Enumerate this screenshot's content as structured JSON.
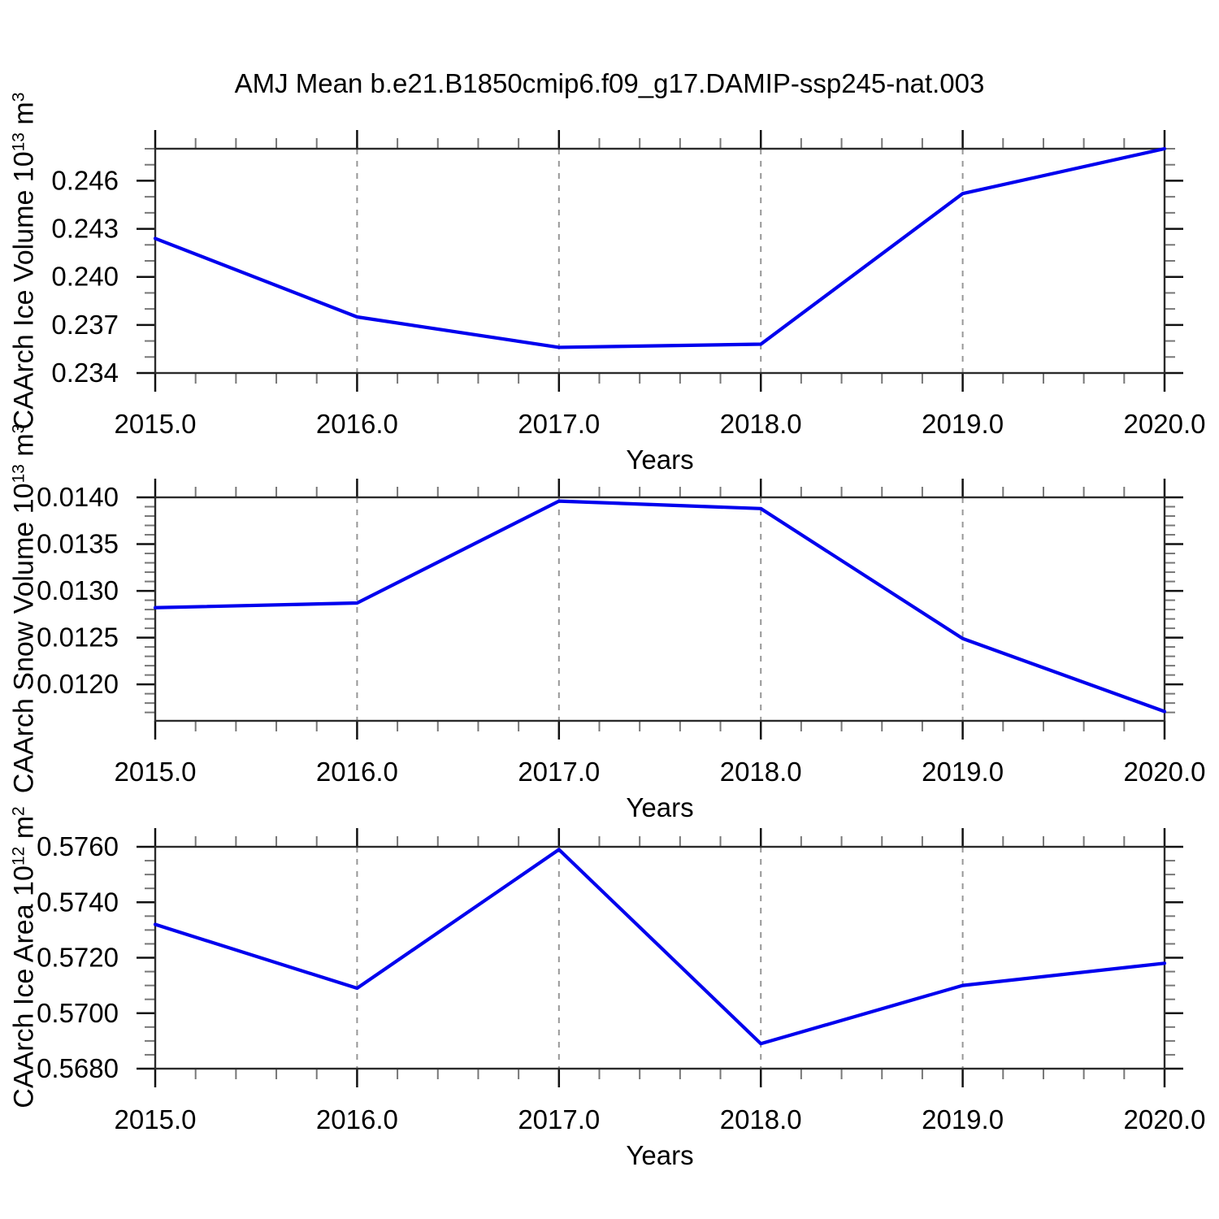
{
  "title": "AMJ Mean b.e21.B1850cmip6.f09_g17.DAMIP-ssp245-nat.003",
  "chart_data": [
    {
      "type": "line",
      "name": "caarch-ice-volume",
      "ylabel_parts": {
        "base": "CAArch Ice Volume 10",
        "exp": "13",
        "unit": " m",
        "unit_exp": "3"
      },
      "xlabel": "Years",
      "x": [
        2015,
        2016,
        2017,
        2018,
        2019,
        2020
      ],
      "values": [
        0.2424,
        0.2375,
        0.2356,
        0.2358,
        0.2452,
        0.248
      ],
      "xlim": [
        2015,
        2020
      ],
      "ylim": [
        0.234,
        0.248
      ],
      "x_major_ticks": [
        2015,
        2016,
        2017,
        2018,
        2019,
        2020
      ],
      "x_tick_labels": [
        "2015.0",
        "2016.0",
        "2017.0",
        "2018.0",
        "2019.0",
        "2020.0"
      ],
      "x_minor_step": 0.2,
      "y_major_ticks": [
        0.234,
        0.237,
        0.24,
        0.243,
        0.246
      ],
      "y_tick_labels": [
        "0.234",
        "0.237",
        "0.240",
        "0.243",
        "0.246"
      ],
      "y_minor_step": 0.001,
      "grid_x": [
        2016,
        2017,
        2018,
        2019
      ],
      "line_color": "#0000ee",
      "grid_on": true,
      "legend": "none"
    },
    {
      "type": "line",
      "name": "caarch-snow-volume",
      "ylabel_parts": {
        "base": "CAArch Snow Volume 10",
        "exp": "13",
        "unit": " m",
        "unit_exp": "3"
      },
      "xlabel": "Years",
      "x": [
        2015,
        2016,
        2017,
        2018,
        2019,
        2020
      ],
      "values": [
        0.01282,
        0.01287,
        0.01396,
        0.01388,
        0.01249,
        0.01171
      ],
      "xlim": [
        2015,
        2020
      ],
      "ylim": [
        0.01161,
        0.014
      ],
      "x_major_ticks": [
        2015,
        2016,
        2017,
        2018,
        2019,
        2020
      ],
      "x_tick_labels": [
        "2015.0",
        "2016.0",
        "2017.0",
        "2018.0",
        "2019.0",
        "2020.0"
      ],
      "x_minor_step": 0.2,
      "y_major_ticks": [
        0.012,
        0.0125,
        0.013,
        0.0135,
        0.014
      ],
      "y_tick_labels": [
        "0.0120",
        "0.0125",
        "0.0130",
        "0.0135",
        "0.0140"
      ],
      "y_minor_step": 0.0001,
      "grid_x": [
        2016,
        2017,
        2018,
        2019
      ],
      "line_color": "#0000ee",
      "grid_on": true,
      "legend": "none"
    },
    {
      "type": "line",
      "name": "caarch-ice-area",
      "ylabel_parts": {
        "base": "CAArch Ice Area 10",
        "exp": "12",
        "unit": " m",
        "unit_exp": "2"
      },
      "xlabel": "Years",
      "x": [
        2015,
        2016,
        2017,
        2018,
        2019,
        2020
      ],
      "values": [
        0.5732,
        0.5709,
        0.5759,
        0.5689,
        0.571,
        0.5718
      ],
      "xlim": [
        2015,
        2020
      ],
      "ylim": [
        0.568,
        0.576
      ],
      "x_major_ticks": [
        2015,
        2016,
        2017,
        2018,
        2019,
        2020
      ],
      "x_tick_labels": [
        "2015.0",
        "2016.0",
        "2017.0",
        "2018.0",
        "2019.0",
        "2020.0"
      ],
      "x_minor_step": 0.2,
      "y_major_ticks": [
        0.568,
        0.57,
        0.572,
        0.574,
        0.576
      ],
      "y_tick_labels": [
        "0.5680",
        "0.5700",
        "0.5720",
        "0.5740",
        "0.5760"
      ],
      "y_minor_step": 0.0005,
      "grid_x": [
        2016,
        2017,
        2018,
        2019
      ],
      "line_color": "#0000ee",
      "grid_on": true,
      "legend": "none"
    }
  ]
}
